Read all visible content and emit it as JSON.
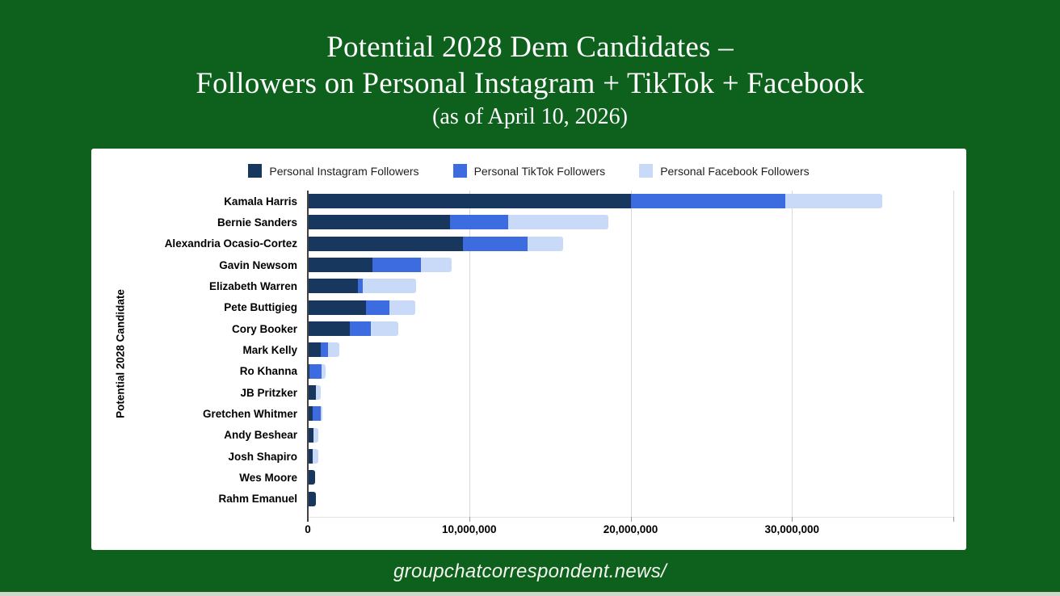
{
  "header": {
    "title_line1": "Potential 2028 Dem Candidates –",
    "title_line2": "Followers on Personal Instagram + TikTok + Facebook",
    "subtitle": "(as of April 10, 2026)"
  },
  "footer": {
    "site_label": "groupchatcorrespondent.news/"
  },
  "colors": {
    "background_green": "#0d611c",
    "card_white": "#ffffff",
    "instagram_navy": "#17375e",
    "tiktok_blue": "#3c6ce0",
    "facebook_light_blue": "#c9daf8",
    "bottom_strip": "#ccd8cb"
  },
  "chart_data": {
    "type": "bar",
    "orientation": "horizontal",
    "stacked": true,
    "title": "",
    "xlabel": "",
    "ylabel": "Potential 2028 Candidate",
    "grid": true,
    "legend_position": "top",
    "xlim": [
      0,
      40000000
    ],
    "x_ticks": [
      {
        "value": 0,
        "label": "0"
      },
      {
        "value": 10000000,
        "label": "10,000,000"
      },
      {
        "value": 20000000,
        "label": "20,000,000"
      },
      {
        "value": 30000000,
        "label": "30,000,000"
      },
      {
        "value": 40000000,
        "label": ""
      }
    ],
    "categories": [
      "Kamala Harris",
      "Bernie Sanders",
      "Alexandria Ocasio-Cortez",
      "Gavin Newsom",
      "Elizabeth Warren",
      "Pete Buttigieg",
      "Cory Booker",
      "Mark Kelly",
      "Ro Khanna",
      "JB Pritzker",
      "Gretchen Whitmer",
      "Andy Beshear",
      "Josh Shapiro",
      "Wes Moore",
      "Rahm Emanuel"
    ],
    "series": [
      {
        "name": "Personal Instagram Followers",
        "color": "#17375e",
        "values": [
          20000000,
          8800000,
          9600000,
          4000000,
          3100000,
          3600000,
          2600000,
          800000,
          100000,
          500000,
          300000,
          350000,
          300000,
          450000,
          500000
        ]
      },
      {
        "name": "Personal TikTok Followers",
        "color": "#3c6ce0",
        "values": [
          9600000,
          3600000,
          4000000,
          3000000,
          300000,
          1450000,
          1300000,
          450000,
          750000,
          0,
          500000,
          0,
          0,
          0,
          0
        ]
      },
      {
        "name": "Personal Facebook Followers",
        "color": "#c9daf8",
        "values": [
          6000000,
          6200000,
          2200000,
          1900000,
          3300000,
          1600000,
          1700000,
          700000,
          250000,
          300000,
          100000,
          300000,
          350000,
          0,
          0
        ]
      }
    ]
  }
}
